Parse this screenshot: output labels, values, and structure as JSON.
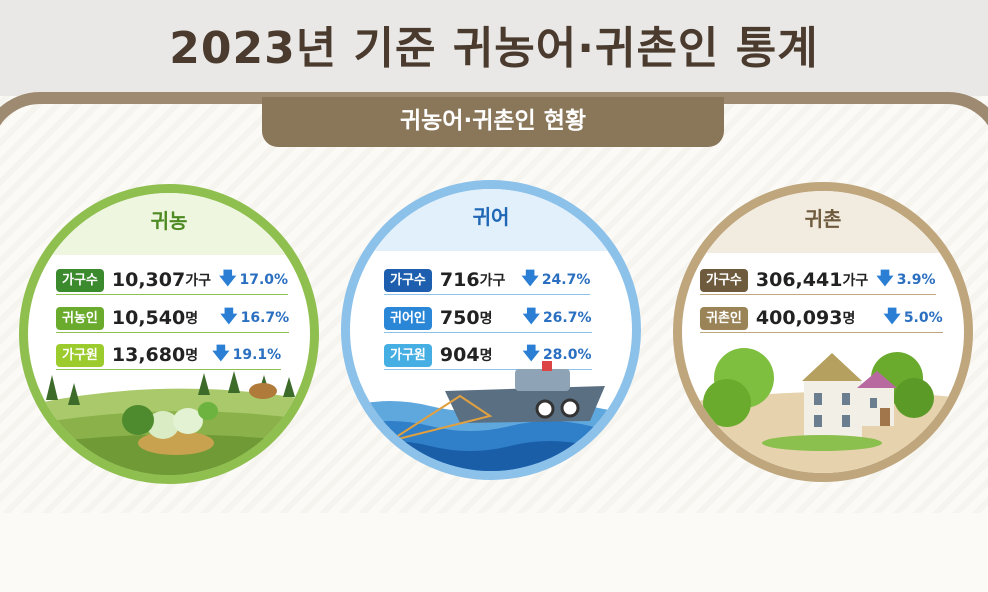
{
  "title": "2023년 기준  귀농어·귀촌인 통계",
  "subtitle": "귀농어·귀촌인 현황",
  "colors": {
    "farm": "#8fbf4e",
    "fish": "#8cc1ea",
    "rural": "#bfa67d",
    "down_arrow": "#2a7fd4"
  },
  "farm": {
    "title": "귀농",
    "rows": [
      {
        "label": "가구수",
        "value": "10,307",
        "unit": "가구",
        "change": "17.0%"
      },
      {
        "label": "귀농인",
        "value": "10,540",
        "unit": "명",
        "change": "16.7%"
      },
      {
        "label": "가구원",
        "value": "13,680",
        "unit": "명",
        "change": "19.1%"
      }
    ]
  },
  "fish": {
    "title": "귀어",
    "rows": [
      {
        "label": "가구수",
        "value": "716",
        "unit": "가구",
        "change": "24.7%"
      },
      {
        "label": "귀어인",
        "value": "750",
        "unit": "명",
        "change": "26.7%"
      },
      {
        "label": "가구원",
        "value": "904",
        "unit": "명",
        "change": "28.0%"
      }
    ]
  },
  "rural": {
    "title": "귀촌",
    "rows": [
      {
        "label": "가구수",
        "value": "306,441",
        "unit": "가구",
        "change": "3.9%"
      },
      {
        "label": "귀촌인",
        "value": "400,093",
        "unit": "명",
        "change": "5.0%"
      }
    ]
  }
}
